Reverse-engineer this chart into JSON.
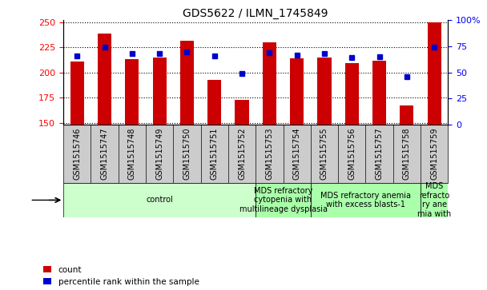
{
  "title": "GDS5622 / ILMN_1745849",
  "samples": [
    "GSM1515746",
    "GSM1515747",
    "GSM1515748",
    "GSM1515749",
    "GSM1515750",
    "GSM1515751",
    "GSM1515752",
    "GSM1515753",
    "GSM1515754",
    "GSM1515755",
    "GSM1515756",
    "GSM1515757",
    "GSM1515758",
    "GSM1515759"
  ],
  "counts": [
    211,
    239,
    213,
    215,
    232,
    193,
    173,
    230,
    214,
    215,
    209,
    212,
    167,
    250
  ],
  "percentile_ranks": [
    66,
    74,
    68,
    68,
    70,
    66,
    49,
    69,
    67,
    68,
    64,
    65,
    46,
    74
  ],
  "ylim_left": [
    148,
    252
  ],
  "ylim_right": [
    0,
    100
  ],
  "yticks_left": [
    150,
    175,
    200,
    225,
    250
  ],
  "yticks_right": [
    0,
    25,
    50,
    75,
    100
  ],
  "bar_color": "#cc0000",
  "dot_color": "#0000cc",
  "bar_width": 0.5,
  "disease_groups": [
    {
      "label": "control",
      "start": 0,
      "end": 7,
      "color": "#ccffcc"
    },
    {
      "label": "MDS refractory\ncytopenia with\nmultilineage dysplasia",
      "start": 7,
      "end": 9,
      "color": "#aaffaa"
    },
    {
      "label": "MDS refractory anemia\nwith excess blasts-1",
      "start": 9,
      "end": 13,
      "color": "#aaffaa"
    },
    {
      "label": "MDS\nrefracto\nry ane\nmia with",
      "start": 13,
      "end": 14,
      "color": "#aaffaa"
    }
  ],
  "sample_bg_color": "#cccccc",
  "legend_count": "count",
  "legend_percentile": "percentile rank within the sample",
  "title_fontsize": 10,
  "tick_fontsize": 8,
  "sample_fontsize": 7,
  "disease_fontsize": 7
}
